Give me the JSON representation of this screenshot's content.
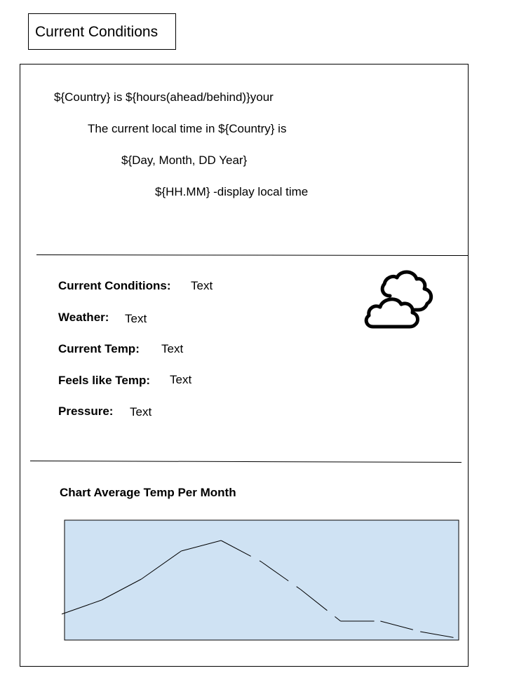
{
  "header": {
    "title": "Current Conditions"
  },
  "time_section": {
    "line1": "${Country} is ${hours(ahead/behind)}your",
    "line2": "The current local time in ${Country} is",
    "line3": "${Day, Month, DD Year}",
    "line4": "${HH.MM} -display local time"
  },
  "conditions": {
    "current_conditions": {
      "label": "Current Conditions:",
      "value": "Text"
    },
    "weather": {
      "label": "Weather:",
      "value": "Text"
    },
    "current_temp": {
      "label": "Current Temp:",
      "value": "Text"
    },
    "feels_like": {
      "label": "Feels like Temp:",
      "value": "Text"
    },
    "pressure": {
      "label": "Pressure:",
      "value": "Text"
    },
    "icon": "cloudy-icon"
  },
  "chart_section": {
    "title": "Chart Average Temp Per Month"
  },
  "chart_data": {
    "type": "line",
    "title": "Chart Average Temp Per Month",
    "xlabel": "",
    "ylabel": "",
    "grid": false,
    "background": "#cfe2f3",
    "series": [
      {
        "style": "dashed",
        "x": [
          0,
          1,
          2,
          3,
          4,
          5,
          6,
          7,
          8,
          9,
          10
        ],
        "values": [
          0.1,
          0.3,
          0.6,
          1.0,
          1.15,
          0.85,
          0.45,
          0.0,
          0.0,
          -0.15,
          -0.25
        ]
      }
    ]
  }
}
